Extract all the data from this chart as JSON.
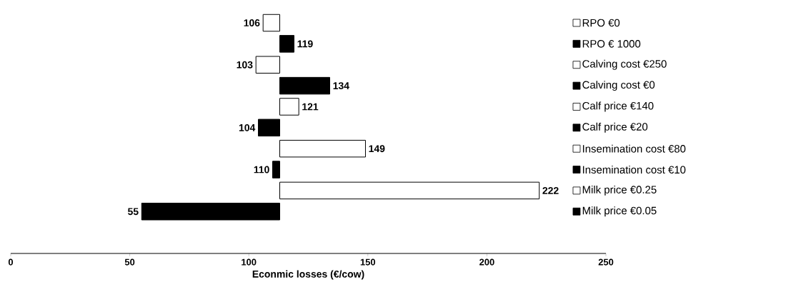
{
  "chart_data": {
    "type": "bar",
    "orientation": "horizontal",
    "xlabel": "Econmic losses (€/cow)",
    "categories": [
      "RPO €0",
      "RPO € 1000",
      "Calving cost €250",
      "Calving cost €0",
      "Calf price €140",
      "Calf price €20",
      "Insemination cost €80",
      "Insemination cost €10",
      "Milk price €0.25",
      "Milk price €0.05"
    ],
    "base": [
      113,
      113,
      113,
      113,
      113,
      113,
      113,
      113,
      113,
      113
    ],
    "values": [
      -7,
      6,
      -10,
      21,
      8,
      -9,
      36,
      -3,
      109,
      -58
    ],
    "value_labels": [
      "106",
      "119",
      "103",
      "134",
      "121",
      "104",
      "149",
      "110",
      "222",
      "55"
    ],
    "colors": [
      "#ffffff",
      "#000000",
      "#ffffff",
      "#000000",
      "#ffffff",
      "#000000",
      "#ffffff",
      "#000000",
      "#ffffff",
      "#000000"
    ],
    "xlim": [
      0,
      250
    ],
    "xticks": [
      0,
      50,
      100,
      150,
      200,
      250
    ]
  }
}
